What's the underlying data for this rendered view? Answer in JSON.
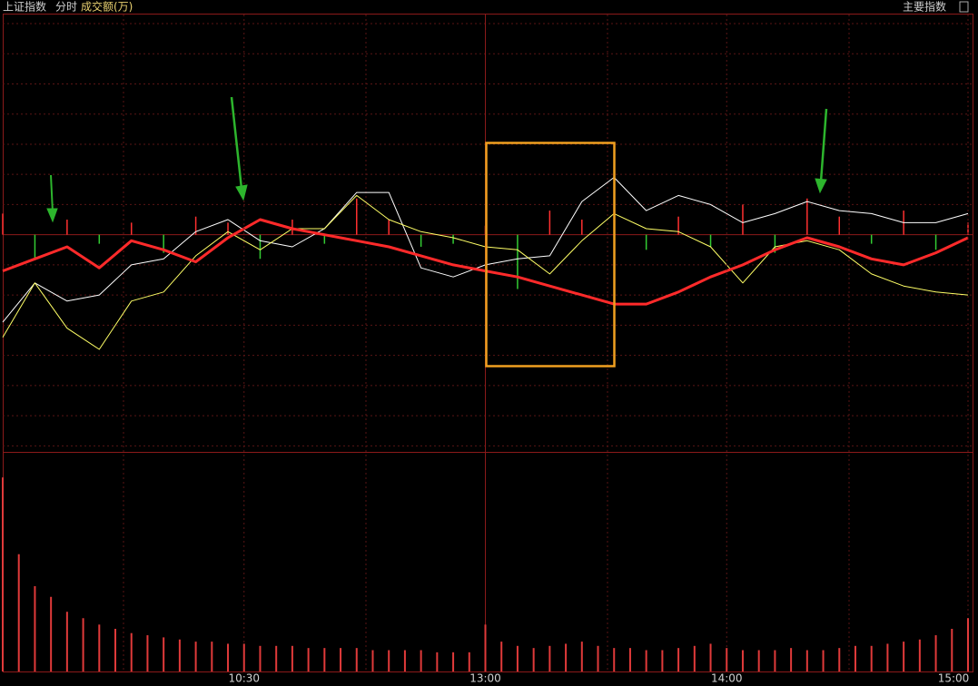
{
  "header": {
    "index_name": "上证指数",
    "mode": "分时",
    "indicator": "成交额(万)",
    "menu": "主要指数"
  },
  "chart_data": [
    {
      "type": "line",
      "x": [
        0,
        8,
        16,
        24,
        32,
        40,
        48,
        56,
        64,
        72,
        80,
        88,
        96,
        104,
        112,
        120,
        128,
        136,
        144,
        152,
        160,
        168,
        176,
        184,
        192,
        200,
        208,
        216,
        224,
        232,
        240
      ],
      "xlim": [
        0,
        240
      ],
      "ylim": [
        -7.2,
        7.3
      ],
      "yticks": [
        -7,
        -6,
        -5,
        -4,
        -3,
        -2,
        -1,
        0,
        1,
        2,
        3,
        4,
        5,
        6,
        7
      ],
      "series": [
        {
          "color": "#ffffff",
          "width": 1,
          "values": [
            -2.9,
            -1.6,
            -2.2,
            -2.0,
            -1.0,
            -0.8,
            0.1,
            0.5,
            -0.2,
            -0.4,
            0.2,
            1.4,
            1.4,
            -1.1,
            -1.4,
            -1.0,
            -0.8,
            -0.7,
            1.1,
            1.9,
            0.8,
            1.3,
            1.0,
            0.4,
            0.7,
            1.1,
            0.8,
            0.7,
            0.4,
            0.4,
            0.7
          ]
        },
        {
          "color": "#ffff66",
          "width": 1,
          "values": [
            -3.4,
            -1.6,
            -3.1,
            -3.8,
            -2.2,
            -1.9,
            -0.7,
            0.1,
            -0.5,
            0.2,
            0.2,
            1.3,
            0.5,
            0.1,
            -0.1,
            -0.4,
            -0.5,
            -1.3,
            -0.2,
            0.7,
            0.2,
            0.1,
            -0.4,
            -1.6,
            -0.4,
            -0.2,
            -0.5,
            -1.3,
            -1.7,
            -1.9,
            -2.0
          ]
        },
        {
          "color": "#ff2a2a",
          "width": 3,
          "values": [
            -1.2,
            -0.8,
            -0.4,
            -1.1,
            -0.2,
            -0.5,
            -0.9,
            -0.1,
            0.5,
            0.2,
            0,
            -0.2,
            -0.4,
            -0.7,
            -1.0,
            -1.2,
            -1.4,
            -1.7,
            -2.0,
            -2.3,
            -2.3,
            -1.9,
            -1.4,
            -1.0,
            -0.5,
            -0.1,
            -0.4,
            -0.8,
            -1.0,
            -0.6,
            -0.1
          ]
        }
      ],
      "bars": {
        "up_color": "#ff3030",
        "down_color": "#33cc33",
        "values": [
          0.7,
          -0.8,
          0.5,
          -0.3,
          0.4,
          -0.6,
          0.6,
          0.4,
          -0.8,
          0.5,
          -0.3,
          1.2,
          0.5,
          -0.4,
          -0.3,
          0.3,
          -1.8,
          0.8,
          0.5,
          2.0,
          -0.5,
          0.6,
          -0.4,
          1.0,
          -0.6,
          1.2,
          0.6,
          -0.3,
          0.8,
          -0.5,
          0.4
        ]
      }
    },
    {
      "type": "bar",
      "color": "#e03a3a",
      "x": [
        0,
        4,
        8,
        12,
        16,
        20,
        24,
        28,
        32,
        36,
        40,
        44,
        48,
        52,
        56,
        60,
        64,
        68,
        72,
        76,
        80,
        84,
        88,
        92,
        96,
        100,
        104,
        108,
        112,
        116,
        120,
        124,
        128,
        132,
        136,
        140,
        144,
        148,
        152,
        156,
        160,
        164,
        168,
        172,
        176,
        180,
        184,
        188,
        192,
        196,
        200,
        204,
        208,
        212,
        216,
        220,
        224,
        228,
        232,
        236,
        240
      ],
      "values": [
        91,
        55,
        40,
        35,
        28,
        25,
        22,
        20,
        18,
        17,
        16,
        15,
        14,
        14,
        13,
        13,
        12,
        12,
        12,
        11,
        11,
        11,
        11,
        10,
        10,
        10,
        10,
        9,
        9,
        9,
        22,
        14,
        12,
        11,
        12,
        13,
        14,
        12,
        11,
        11,
        10,
        10,
        11,
        12,
        13,
        11,
        10,
        10,
        10,
        11,
        10,
        10,
        11,
        12,
        12,
        13,
        14,
        15,
        17,
        20,
        25
      ],
      "xlim": [
        0,
        240
      ],
      "ylim": [
        0,
        100
      ],
      "xticks": [
        {
          "value": 60,
          "label": "10:30"
        },
        {
          "value": 120,
          "label": "13:00"
        },
        {
          "value": 180,
          "label": "14:00"
        },
        {
          "value": 240,
          "label": "15:00"
        }
      ]
    }
  ]
}
